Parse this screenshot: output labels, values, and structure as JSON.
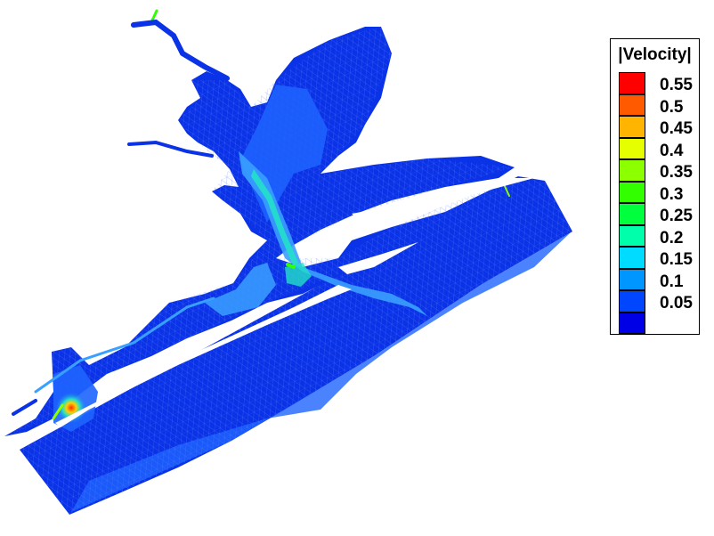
{
  "legend": {
    "title": "|Velocity|",
    "entries": [
      {
        "label": "0.55",
        "color": "#ff0000"
      },
      {
        "label": "0.5",
        "color": "#ff5a00"
      },
      {
        "label": "0.45",
        "color": "#ffb400"
      },
      {
        "label": "0.4",
        "color": "#e6ff00"
      },
      {
        "label": "0.35",
        "color": "#8cff00"
      },
      {
        "label": "0.3",
        "color": "#32ff00"
      },
      {
        "label": "0.25",
        "color": "#00ff3c"
      },
      {
        "label": "0.2",
        "color": "#00ffaa"
      },
      {
        "label": "0.15",
        "color": "#00dcff"
      },
      {
        "label": "0.1",
        "color": "#0096ff"
      },
      {
        "label": "0.05",
        "color": "#0046ff"
      },
      {
        "label": "",
        "color": "#0000e6"
      }
    ]
  },
  "colors": {
    "water_base": "#0a32e6",
    "mesh_line": "#5a7cff",
    "velocity_low": "#1e64ff",
    "velocity_mid": "#3aa0ff",
    "velocity_high": "#22e0c8",
    "velocity_peak": "#ff2a00"
  }
}
